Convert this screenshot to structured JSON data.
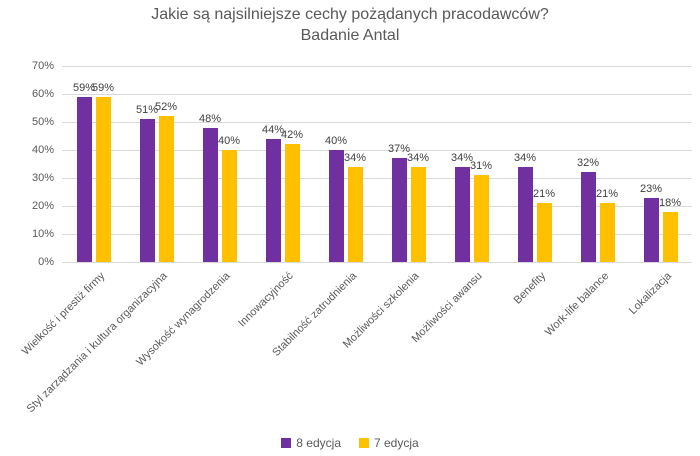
{
  "title": {
    "line1": "Jakie są najsilniejsze cechy pożądanych pracodawców?",
    "line2": "Badanie Antal"
  },
  "chart_data": {
    "type": "bar",
    "title": "Jakie są najsilniejsze cechy pożądanych pracodawców? Badanie Antal",
    "categories": [
      "Wielkość i prestiż firmy",
      "Styl zarządzania i kultura organizacyjna",
      "Wysokość wynagrodzenia",
      "Innowacyjność",
      "Stabilność zatrudnienia",
      "Możliwości szkolenia",
      "Możliwości awansu",
      "Benefity",
      "Work-life balance",
      "Lokalizacja"
    ],
    "series": [
      {
        "name": "8 edycja",
        "color": "#7030A0",
        "values": [
          59,
          51,
          48,
          44,
          40,
          37,
          34,
          34,
          32,
          23
        ]
      },
      {
        "name": "7 edycja",
        "color": "#FFC000",
        "values": [
          59,
          52,
          40,
          42,
          34,
          34,
          31,
          21,
          21,
          18
        ]
      }
    ],
    "ylim": [
      0,
      70
    ],
    "ytick_step": 10,
    "ytick_suffix": "%",
    "grid": true,
    "data_labels": true,
    "legend_position": "bottom"
  },
  "colors": {
    "gridline": "#d9d9d9",
    "title_text": "#595959",
    "tick_text": "#595959",
    "data_label_text": "#404040"
  }
}
